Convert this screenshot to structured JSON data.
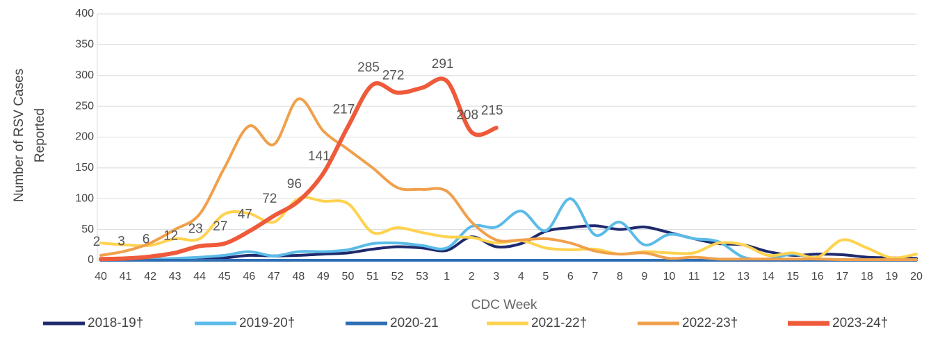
{
  "chart_data": {
    "type": "line",
    "ylabel": [
      "Number of RSV  Cases",
      "Reported"
    ],
    "xlabel": "CDC Week",
    "categories": [
      "40",
      "41",
      "42",
      "43",
      "44",
      "45",
      "46",
      "47",
      "48",
      "49",
      "50",
      "51",
      "52",
      "53",
      "1",
      "2",
      "3",
      "4",
      "5",
      "6",
      "7",
      "8",
      "9",
      "10",
      "11",
      "12",
      "13",
      "14",
      "15",
      "16",
      "17",
      "18",
      "19",
      "20"
    ],
    "ylim": [
      0,
      400
    ],
    "yticks": [
      0,
      50,
      100,
      150,
      200,
      250,
      300,
      350,
      400
    ],
    "grid": true,
    "legend": "bottom",
    "series": [
      {
        "name": "2018-19†",
        "color": "#1f2a6e",
        "width": 4,
        "values": [
          0,
          0,
          1,
          2,
          3,
          4,
          8,
          7,
          8,
          10,
          12,
          18,
          22,
          20,
          16,
          38,
          22,
          27,
          47,
          53,
          56,
          50,
          54,
          45,
          35,
          27,
          25,
          14,
          8,
          10,
          9,
          5,
          4,
          3
        ]
      },
      {
        "name": "2019-20†",
        "color": "#5bbbe8",
        "width": 4,
        "values": [
          0,
          1,
          2,
          3,
          5,
          8,
          14,
          7,
          14,
          14,
          17,
          27,
          28,
          24,
          20,
          55,
          54,
          80,
          48,
          100,
          41,
          62,
          25,
          42,
          35,
          30,
          5,
          2,
          10,
          2,
          1,
          1,
          1,
          1
        ]
      },
      {
        "name": "2020-21",
        "color": "#2e6db4",
        "width": 4,
        "values": [
          0,
          0,
          0,
          0,
          0,
          0,
          0,
          0,
          0,
          0,
          0,
          0,
          0,
          0,
          0,
          0,
          0,
          0,
          0,
          0,
          0,
          0,
          0,
          0,
          0,
          0,
          0,
          0,
          0,
          0,
          0,
          0,
          0,
          0
        ]
      },
      {
        "name": "2021-22†",
        "color": "#ffd24f",
        "width": 4,
        "values": [
          28,
          25,
          24,
          35,
          35,
          75,
          76,
          62,
          100,
          96,
          92,
          45,
          53,
          45,
          38,
          37,
          28,
          32,
          20,
          17,
          18,
          10,
          14,
          12,
          12,
          28,
          25,
          8,
          12,
          5,
          33,
          20,
          4,
          10
        ]
      },
      {
        "name": "2022-23†",
        "color": "#f0a04b",
        "width": 4,
        "values": [
          8,
          15,
          28,
          50,
          75,
          150,
          218,
          188,
          262,
          210,
          180,
          150,
          118,
          115,
          112,
          62,
          33,
          33,
          35,
          28,
          15,
          10,
          12,
          3,
          5,
          2,
          2,
          2,
          2,
          2,
          1,
          1,
          1,
          1
        ]
      },
      {
        "name": "2023-24†",
        "color": "#ee5a3a",
        "width": 6,
        "values": [
          2,
          3,
          6,
          12,
          23,
          27,
          47,
          72,
          96,
          141,
          217,
          285,
          272,
          280,
          291,
          208,
          215,
          null,
          null,
          null,
          null,
          null,
          null,
          null,
          null,
          null,
          null,
          null,
          null,
          null,
          null,
          null,
          null,
          null
        ],
        "value_labels": [
          "2",
          "3",
          "6",
          "12",
          "23",
          "27",
          "47",
          "72",
          "96",
          "141",
          "217",
          "285",
          "272",
          null,
          "291",
          "208",
          "215",
          null,
          null,
          null,
          null,
          null,
          null,
          null,
          null,
          null,
          null,
          null,
          null,
          null,
          null,
          null,
          null,
          null
        ]
      }
    ]
  }
}
